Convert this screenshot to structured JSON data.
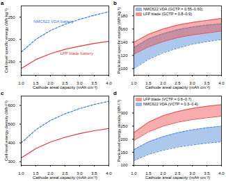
{
  "chart_data": [
    {
      "type": "line",
      "title": "a",
      "x_label": "Cathode areal capacity (mAh cm⁻²)",
      "y_label": "Cell-level specific energy (Wh kg⁻¹)",
      "x": [
        1.0,
        1.5,
        2.0,
        2.5,
        3.0,
        3.5,
        4.0
      ],
      "series": [
        {
          "name": "NMC622 VDA battery",
          "color": "#3a78d4",
          "line_style": "dashed",
          "values": [
            172,
            200,
            220,
            234,
            245,
            254,
            262
          ]
        },
        {
          "name": "LFP blade battery",
          "color": "#e0393a",
          "line_style": "solid",
          "values": [
            135,
            155,
            168,
            178,
            185,
            191,
            196
          ]
        }
      ],
      "annotations": [
        {
          "text": "NMC622 VDA battery",
          "x": 2.1,
          "y": 240,
          "color": "#3a78d4"
        },
        {
          "text": "LFP blade battery",
          "x": 2.9,
          "y": 168,
          "color": "#e0393a"
        }
      ],
      "xlim": [
        1.0,
        4.0
      ],
      "xticks": [
        {
          "value": 1.0,
          "label": "1.0"
        },
        {
          "value": 1.5,
          "label": "1.5"
        },
        {
          "value": 2.0,
          "label": "2.0"
        },
        {
          "value": 2.5,
          "label": "2.5"
        },
        {
          "value": 3.0,
          "label": "3.0"
        },
        {
          "value": 3.5,
          "label": "3.5"
        },
        {
          "value": 4.0,
          "label": "4.0"
        }
      ],
      "ylim": [
        120,
        275
      ],
      "yticks": [
        150,
        200,
        250
      ]
    },
    {
      "type": "area",
      "title": "b",
      "x_label": "Cathode areal capacity (mAh cm⁻²)",
      "y_label": "Pack-level specific energy (Wh kg⁻¹)",
      "x": [
        1.0,
        1.5,
        2.0,
        2.5,
        3.0,
        3.5,
        4.0
      ],
      "series": [
        {
          "name": "NMC622 VDA (GCTP = 0.55–0.60)",
          "color": "#4a86d8",
          "line_style": "dashed",
          "lower": [
            100,
            114,
            124,
            131,
            137,
            141,
            144
          ],
          "upper": [
            132,
            145,
            153,
            159,
            163,
            166,
            168
          ]
        },
        {
          "name": "LFP blade (GCTP = 0.8–0.9)",
          "color": "#e8494a",
          "line_style": "solid",
          "lower": [
            122,
            133,
            141,
            147,
            151,
            154,
            157
          ],
          "upper": [
            140,
            152,
            160,
            166,
            170,
            173,
            176
          ]
        }
      ],
      "legend": "top-left",
      "xlim": [
        1.0,
        4.0
      ],
      "xticks": [
        {
          "value": 1.0,
          "label": "1.0"
        },
        {
          "value": 1.5,
          "label": "1.5"
        },
        {
          "value": 2.0,
          "label": "2.0"
        },
        {
          "value": 2.5,
          "label": "2.5"
        },
        {
          "value": 3.0,
          "label": "3.0"
        },
        {
          "value": 3.5,
          "label": "3.5"
        },
        {
          "value": 4.0,
          "label": "4.0"
        }
      ],
      "ylim": [
        90,
        195
      ],
      "yticks": [
        100,
        120,
        140,
        160,
        180
      ]
    },
    {
      "type": "line",
      "title": "c",
      "x_label": "Cathode areal capacity (mAh cm⁻²)",
      "y_label": "Cell-level energy density (Wh l⁻¹)",
      "x": [
        1.0,
        1.5,
        2.0,
        2.5,
        3.0,
        3.5,
        4.0
      ],
      "series": [
        {
          "color": "#3a78d4",
          "line_style": "dashed",
          "values": [
            400,
            470,
            520,
            555,
            583,
            605,
            622
          ]
        },
        {
          "color": "#e0393a",
          "line_style": "solid",
          "values": [
            320,
            370,
            405,
            430,
            450,
            465,
            477
          ]
        }
      ],
      "xlim": [
        1.0,
        4.0
      ],
      "xticks": [
        {
          "value": 1.0,
          "label": "1.0"
        },
        {
          "value": 1.5,
          "label": "1.5"
        },
        {
          "value": 2.0,
          "label": "2.0"
        },
        {
          "value": 2.5,
          "label": "2.5"
        },
        {
          "value": 3.0,
          "label": "3.0"
        },
        {
          "value": 3.5,
          "label": "3.5"
        },
        {
          "value": 4.0,
          "label": "4.0"
        }
      ],
      "ylim": [
        280,
        650
      ],
      "yticks": [
        300,
        400,
        500,
        600
      ]
    },
    {
      "type": "area",
      "title": "d",
      "x_label": "Cathode areal capacity (mAh cm⁻²)",
      "y_label": "Pack-level energy density (Wh l⁻¹)",
      "x": [
        1.0,
        1.5,
        2.0,
        2.5,
        3.0,
        3.5,
        4.0
      ],
      "series": [
        {
          "name": "LFP blade (VCTP = 0.6–0.7)",
          "color": "#e8494a",
          "line_style": "solid",
          "lower": [
            195,
            228,
            250,
            265,
            275,
            282,
            288
          ],
          "upper": [
            225,
            265,
            290,
            306,
            318,
            326,
            332
          ]
        },
        {
          "name": "NMC622 VDA (VCTP = 0.3–0.4)",
          "color": "#4a86d8",
          "line_style": "dashed",
          "lower": [
            118,
            142,
            158,
            170,
            178,
            185,
            190
          ],
          "upper": [
            160,
            190,
            210,
            225,
            236,
            244,
            250
          ]
        }
      ],
      "legend": "top-left",
      "xlim": [
        1.0,
        4.0
      ],
      "xticks": [
        {
          "value": 1.0,
          "label": "1.0"
        },
        {
          "value": 1.5,
          "label": "1.5"
        },
        {
          "value": 2.0,
          "label": "2.0"
        },
        {
          "value": 2.5,
          "label": "2.5"
        },
        {
          "value": 3.0,
          "label": "3.0"
        },
        {
          "value": 3.5,
          "label": "3.5"
        },
        {
          "value": 4.0,
          "label": "4.0"
        }
      ],
      "ylim": [
        100,
        365
      ],
      "yticks": [
        100,
        150,
        200,
        250,
        300
      ]
    }
  ]
}
